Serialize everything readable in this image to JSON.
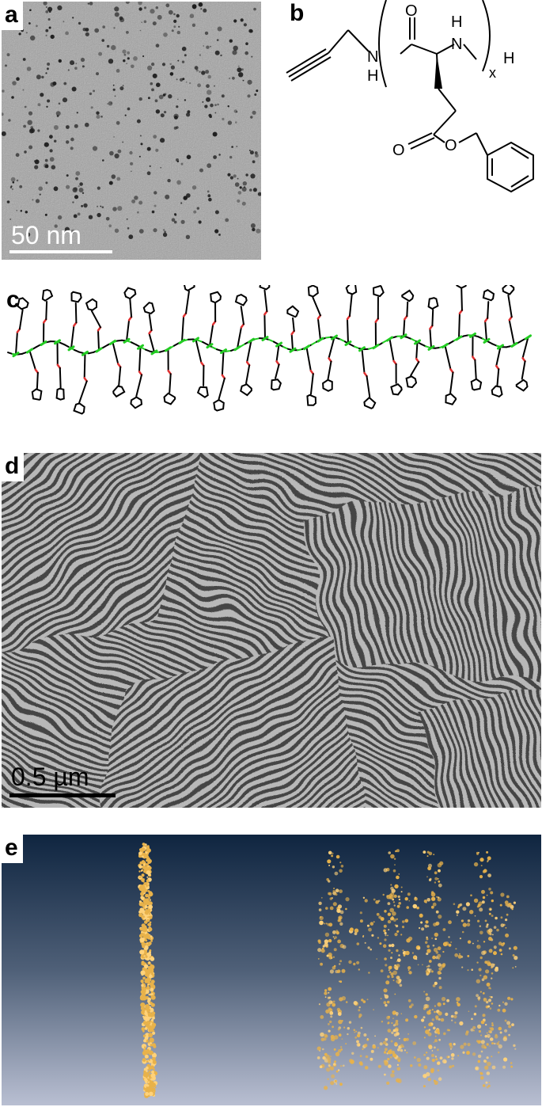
{
  "panels": {
    "a": {
      "label": "a",
      "scale_bar": "50 nm"
    },
    "b": {
      "label": "b",
      "atoms": {
        "o_amide": "O",
        "n_top": "N",
        "h_top": "H",
        "h_end": "H",
        "n_left": "N",
        "h_left": "H",
        "subscript": "x",
        "o_ester_carbonyl": "O",
        "o_ester": "O"
      }
    },
    "c": {
      "label": "c"
    },
    "d": {
      "label": "d",
      "scale_bar": "0.5 µm"
    },
    "e": {
      "label": "e"
    }
  },
  "colors": {
    "tem_background": "#9a9a9a",
    "fingerprint_background": "#8e8e8e",
    "render_gradient_top": "#0f2540",
    "render_gradient_bottom": "#b9bfd2",
    "gold": "#e8b24a",
    "carbon": "#000000",
    "oxygen": "#e03030",
    "nitrogen": "#22cc22"
  }
}
